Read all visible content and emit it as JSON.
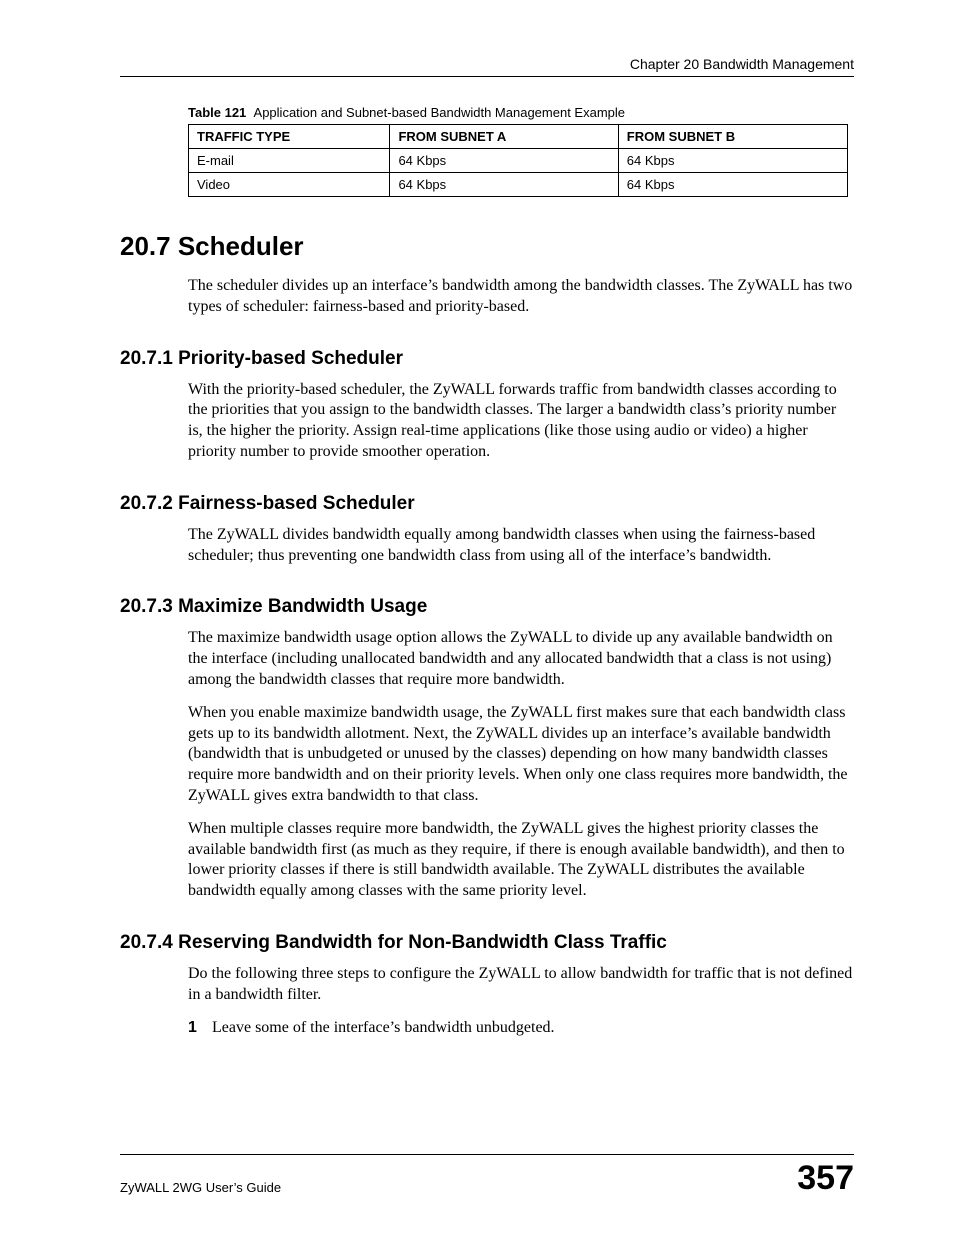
{
  "chapter_header": "Chapter 20 Bandwidth Management",
  "table": {
    "caption_label": "Table 121",
    "caption_text": "Application and Subnet-based Bandwidth Management Example",
    "columns": [
      "TRAFFIC TYPE",
      "FROM SUBNET A",
      "FROM SUBNET B"
    ],
    "rows": [
      [
        "E-mail",
        "64 Kbps",
        "64 Kbps"
      ],
      [
        "Video",
        "64 Kbps",
        "64 Kbps"
      ]
    ]
  },
  "sections": {
    "s207": {
      "title": "20.7  Scheduler",
      "p1": "The scheduler divides up an interface’s bandwidth among the bandwidth classes. The ZyWALL has two types of scheduler: fairness-based and priority-based."
    },
    "s2071": {
      "title": "20.7.1  Priority-based Scheduler",
      "p1": "With the priority-based scheduler, the ZyWALL forwards traffic from bandwidth classes according to the priorities that you assign to the bandwidth classes. The larger a bandwidth class’s priority number is, the higher the priority. Assign real-time applications (like those using audio or video) a higher priority number to provide smoother operation."
    },
    "s2072": {
      "title": "20.7.2  Fairness-based Scheduler",
      "p1": "The ZyWALL divides bandwidth equally among bandwidth classes when using the fairness-based scheduler; thus preventing one bandwidth class from using all of the interface’s bandwidth."
    },
    "s2073": {
      "title": "20.7.3  Maximize Bandwidth Usage",
      "p1": "The maximize bandwidth usage option allows the ZyWALL to divide up any available bandwidth on the interface (including unallocated bandwidth and any allocated bandwidth that a class is not using) among the bandwidth classes that require more bandwidth.",
      "p2": "When you enable maximize bandwidth usage, the ZyWALL first makes sure that each bandwidth class gets up to its bandwidth allotment. Next, the ZyWALL divides up an interface’s available bandwidth (bandwidth that is unbudgeted or unused by the classes) depending on how many bandwidth classes require more bandwidth and on their priority levels. When only one class requires more bandwidth, the ZyWALL gives extra bandwidth to that class.",
      "p3": "When multiple classes require more bandwidth, the ZyWALL gives the highest priority classes the available bandwidth first (as much as they require, if there is enough available bandwidth), and then to lower priority classes if there is still bandwidth available. The ZyWALL distributes the available bandwidth equally among classes with the same priority level."
    },
    "s2074": {
      "title": "20.7.4  Reserving Bandwidth for Non-Bandwidth Class Traffic",
      "p1": "Do the following three steps to configure the ZyWALL to allow bandwidth for traffic that is not defined in a bandwidth filter.",
      "step1_num": "1",
      "step1_text": "Leave some of the interface’s bandwidth unbudgeted."
    }
  },
  "footer": {
    "left": "ZyWALL 2WG User’s Guide",
    "page": "357"
  }
}
